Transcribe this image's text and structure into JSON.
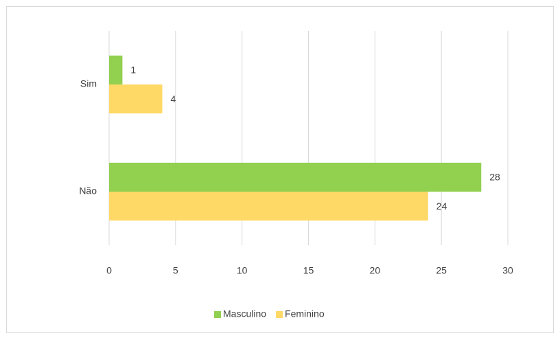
{
  "chart_data": {
    "type": "hbar",
    "categories": [
      "Sim",
      "Não"
    ],
    "series": [
      {
        "name": "Masculino",
        "color": "#92d050",
        "values": [
          1,
          28
        ]
      },
      {
        "name": "Feminino",
        "color": "#ffd966",
        "values": [
          4,
          24
        ]
      }
    ],
    "xlim": [
      0,
      30
    ],
    "xticks": [
      0,
      5,
      10,
      15,
      20,
      25,
      30
    ],
    "grid": true,
    "legend": "bottom"
  }
}
